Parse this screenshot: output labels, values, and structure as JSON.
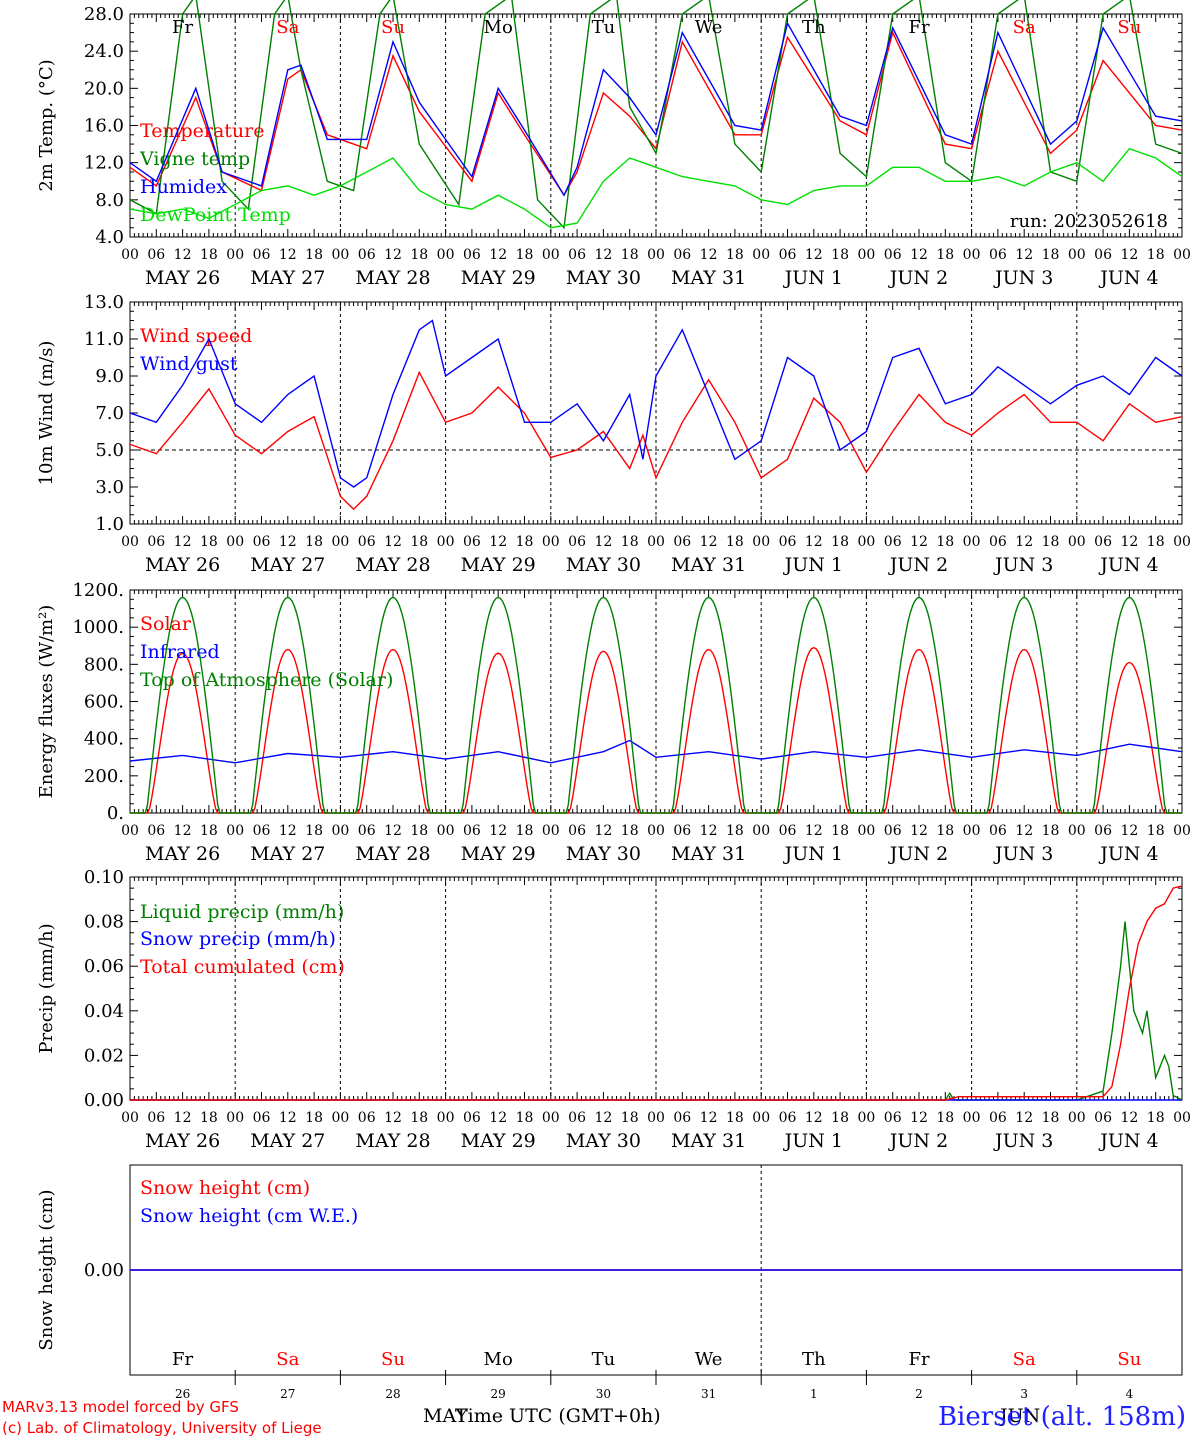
{
  "chart_data": [
    {
      "type": "line",
      "ylabel": "2m Temp. (°C)",
      "ylim": [
        4,
        28
      ],
      "ytick_labels": [
        "4.0",
        "8.0",
        "12.0",
        "16.0",
        "20.0",
        "24.0",
        "28.0"
      ],
      "xlim": [
        0,
        240
      ],
      "x_unit": "hours since 2023-05-26 00 UTC",
      "annotation": "run: 2023052618",
      "grid": "daily dashed verticals",
      "legend_position": "left",
      "series": [
        {
          "name": "Temperature",
          "color": "#ff0000",
          "x": [
            0,
            6,
            15,
            21,
            30,
            36,
            39,
            45,
            54,
            60,
            66,
            78,
            84,
            90,
            99,
            102,
            108,
            114,
            120,
            126,
            138,
            144,
            150,
            162,
            168,
            174,
            186,
            192,
            198,
            210,
            216,
            222,
            234,
            240
          ],
          "y": [
            11.5,
            9.5,
            19.0,
            11.0,
            9.0,
            21.0,
            22.0,
            15.0,
            13.5,
            23.5,
            17.5,
            10.0,
            19.5,
            15.0,
            8.5,
            11.0,
            19.5,
            17.0,
            13.5,
            25.0,
            15.0,
            15.0,
            25.5,
            16.5,
            15.0,
            26.0,
            14.0,
            13.5,
            24.0,
            13.0,
            15.5,
            23.0,
            16.0,
            15.5
          ]
        },
        {
          "name": "Vigne temp",
          "color": "#008000",
          "x": [
            0,
            6,
            12,
            15,
            21,
            27,
            33,
            36,
            39,
            45,
            51,
            57,
            60,
            66,
            75,
            81,
            87,
            93,
            99,
            105,
            111,
            114,
            120,
            126,
            132,
            138,
            144,
            150,
            156,
            162,
            168,
            174,
            180,
            186,
            192,
            198,
            204,
            210,
            216,
            222,
            228,
            234,
            240
          ],
          "y": [
            8.0,
            6.5,
            28.0,
            30.0,
            10.0,
            7.0,
            28.0,
            30.0,
            22.0,
            10.0,
            9.0,
            28.0,
            30.0,
            14.0,
            7.5,
            28.0,
            30.0,
            8.0,
            5.0,
            28.0,
            30.0,
            18.0,
            13.0,
            28.0,
            30.0,
            14.0,
            11.0,
            28.0,
            30.0,
            13.0,
            10.5,
            28.0,
            30.0,
            12.0,
            10.0,
            28.0,
            30.0,
            11.0,
            10.0,
            28.0,
            30.0,
            14.0,
            13.0
          ]
        },
        {
          "name": "Humidex",
          "color": "#0000ff",
          "x": [
            0,
            6,
            15,
            21,
            30,
            36,
            39,
            45,
            54,
            60,
            66,
            78,
            84,
            90,
            99,
            102,
            108,
            114,
            120,
            126,
            138,
            144,
            150,
            162,
            168,
            174,
            186,
            192,
            198,
            210,
            216,
            222,
            234,
            240
          ],
          "y": [
            12.0,
            10.0,
            20.0,
            11.0,
            9.5,
            22.0,
            22.5,
            14.5,
            14.5,
            25.0,
            18.5,
            10.5,
            20.0,
            15.5,
            8.5,
            11.5,
            22.0,
            19.0,
            15.0,
            26.0,
            16.0,
            15.5,
            27.0,
            17.0,
            16.0,
            26.5,
            15.0,
            14.0,
            26.0,
            14.0,
            16.5,
            26.5,
            17.0,
            16.5
          ]
        },
        {
          "name": "DewPoint Temp",
          "color": "#00e000",
          "x": [
            0,
            6,
            12,
            18,
            24,
            30,
            36,
            42,
            48,
            54,
            60,
            66,
            72,
            78,
            84,
            90,
            96,
            102,
            108,
            114,
            120,
            126,
            132,
            138,
            144,
            150,
            156,
            162,
            168,
            174,
            180,
            186,
            192,
            198,
            204,
            210,
            216,
            222,
            228,
            234,
            240
          ],
          "y": [
            7.0,
            6.5,
            7.0,
            6.0,
            7.5,
            9.0,
            9.5,
            8.5,
            9.5,
            11.0,
            12.5,
            9.0,
            7.5,
            7.0,
            8.5,
            7.0,
            5.0,
            5.5,
            10.0,
            12.5,
            11.5,
            10.5,
            10.0,
            9.5,
            8.0,
            7.5,
            9.0,
            9.5,
            9.5,
            11.5,
            11.5,
            10.0,
            10.0,
            10.5,
            9.5,
            11.0,
            12.0,
            10.0,
            13.5,
            12.5,
            10.5
          ]
        }
      ]
    },
    {
      "type": "line",
      "ylabel": "10m Wind (m/s)",
      "ylim": [
        1,
        13
      ],
      "ytick_labels": [
        "1.0",
        "3.0",
        "5.0",
        "7.0",
        "9.0",
        "11.0",
        "13.0"
      ],
      "xlim": [
        0,
        240
      ],
      "reference_line": 5.0,
      "legend_position": "left",
      "series": [
        {
          "name": "Wind speed",
          "color": "#ff0000",
          "x": [
            0,
            6,
            12,
            18,
            24,
            30,
            36,
            42,
            48,
            51,
            54,
            60,
            66,
            72,
            78,
            84,
            90,
            96,
            102,
            108,
            114,
            117,
            120,
            126,
            132,
            138,
            144,
            150,
            156,
            162,
            168,
            174,
            180,
            186,
            192,
            198,
            204,
            210,
            216,
            222,
            228,
            234,
            240
          ],
          "y": [
            5.3,
            4.8,
            6.5,
            8.3,
            5.8,
            4.8,
            6.0,
            6.8,
            2.5,
            1.8,
            2.5,
            5.5,
            9.2,
            6.5,
            7.0,
            8.4,
            7.0,
            4.6,
            5.0,
            6.0,
            4.0,
            5.8,
            3.5,
            6.5,
            8.8,
            6.5,
            3.5,
            4.5,
            7.8,
            6.5,
            3.8,
            6.0,
            8.0,
            6.5,
            5.8,
            7.0,
            8.0,
            6.5,
            6.5,
            5.5,
            7.5,
            6.5,
            6.8
          ]
        },
        {
          "name": "Wind gust",
          "color": "#0000ff",
          "x": [
            0,
            6,
            12,
            18,
            24,
            30,
            36,
            42,
            48,
            51,
            54,
            60,
            66,
            69,
            72,
            78,
            84,
            90,
            96,
            102,
            108,
            114,
            117,
            120,
            126,
            132,
            138,
            144,
            150,
            156,
            162,
            168,
            174,
            180,
            186,
            192,
            198,
            204,
            210,
            216,
            222,
            228,
            234,
            240
          ],
          "y": [
            7.0,
            6.5,
            8.5,
            11.0,
            7.5,
            6.5,
            8.0,
            9.0,
            3.5,
            3.0,
            3.5,
            8.0,
            11.5,
            12.0,
            9.0,
            10.0,
            11.0,
            6.5,
            6.5,
            7.5,
            5.5,
            8.0,
            4.5,
            9.0,
            11.5,
            8.0,
            4.5,
            5.5,
            10.0,
            9.0,
            5.0,
            6.0,
            10.0,
            10.5,
            7.5,
            8.0,
            9.5,
            8.5,
            7.5,
            8.5,
            9.0,
            8.0,
            10.0,
            9.0
          ]
        }
      ]
    },
    {
      "type": "line",
      "ylabel": "Energy fluxes (W/m²)",
      "ylim": [
        0,
        1200
      ],
      "ytick_labels": [
        "0.",
        "200.",
        "400.",
        "600.",
        "800.",
        "1000.",
        "1200."
      ],
      "xlim": [
        0,
        240
      ],
      "legend_position": "left",
      "solar_peaks": [
        860,
        880,
        880,
        860,
        870,
        880,
        890,
        880,
        880,
        810
      ],
      "toa_peak": 1160,
      "series": [
        {
          "name": "Solar",
          "color": "#ff0000"
        },
        {
          "name": "Infrared",
          "color": "#0000ff",
          "x": [
            0,
            12,
            24,
            36,
            48,
            60,
            72,
            84,
            96,
            108,
            114,
            120,
            132,
            144,
            156,
            168,
            180,
            192,
            204,
            216,
            228,
            240
          ],
          "y": [
            280,
            310,
            270,
            320,
            300,
            330,
            290,
            330,
            270,
            330,
            390,
            300,
            330,
            290,
            330,
            300,
            340,
            300,
            340,
            310,
            370,
            330
          ]
        },
        {
          "name": "Top of Atmosphere (Solar)",
          "color": "#008000"
        }
      ]
    },
    {
      "type": "line",
      "ylabel": "Precip (mm/h)",
      "ylim": [
        0,
        0.1
      ],
      "ytick_labels": [
        "0.00",
        "0.02",
        "0.04",
        "0.06",
        "0.08",
        "0.10"
      ],
      "xlim": [
        0,
        240
      ],
      "legend_position": "left",
      "series": [
        {
          "name": "Liquid precip (mm/h)",
          "color": "#008000",
          "x": [
            0,
            186,
            187,
            188,
            216,
            222,
            224,
            226,
            227,
            229,
            231,
            232,
            234,
            236,
            237,
            238,
            240
          ],
          "y": [
            0,
            0,
            0.003,
            0,
            0,
            0.004,
            0.03,
            0.06,
            0.08,
            0.04,
            0.03,
            0.04,
            0.01,
            0.02,
            0.015,
            0.002,
            0
          ]
        },
        {
          "name": "Snow precip (mm/h)",
          "color": "#0000ff",
          "x": [
            0,
            240
          ],
          "y": [
            0,
            0
          ]
        },
        {
          "name": "Total cumulated (cm)",
          "color": "#ff0000",
          "x": [
            0,
            186,
            189,
            222,
            224,
            226,
            228,
            230,
            232,
            234,
            236,
            238,
            240
          ],
          "y": [
            0,
            0,
            0.0015,
            0.0015,
            0.006,
            0.025,
            0.05,
            0.07,
            0.08,
            0.086,
            0.088,
            0.095,
            0.096
          ]
        }
      ]
    },
    {
      "type": "line",
      "ylabel": "Snow height (cm)",
      "ytick_labels": [
        "0.00"
      ],
      "xlim": [
        0,
        240
      ],
      "legend_position": "left",
      "series": [
        {
          "name": "Snow height (cm)",
          "color": "#ff0000",
          "x": [
            0,
            240
          ],
          "y": [
            0,
            0
          ]
        },
        {
          "name": "Snow height (cm W.E.)",
          "color": "#0000ff",
          "x": [
            0,
            240
          ],
          "y": [
            0,
            0
          ]
        }
      ]
    }
  ],
  "x_hour_ticks": [
    "00",
    "06",
    "12",
    "18"
  ],
  "x_last_tick": "00",
  "day_labels": [
    "MAY 26",
    "MAY 27",
    "MAY 28",
    "MAY 29",
    "MAY 30",
    "MAY 31",
    "JUN  1",
    "JUN  2",
    "JUN  3",
    "JUN  4"
  ],
  "weekdays": [
    "Fr",
    "Sa",
    "Su",
    "Mo",
    "Tu",
    "We",
    "Th",
    "Fr",
    "Sa",
    "Su"
  ],
  "weekend_flags": [
    false,
    true,
    true,
    false,
    false,
    false,
    false,
    false,
    true,
    true
  ],
  "day_numbers": [
    "26",
    "27",
    "28",
    "29",
    "30",
    "31",
    "1",
    "2",
    "3",
    "4"
  ],
  "colors": {
    "weekday": "#000000",
    "weekend": "#ff0000"
  },
  "footer": {
    "model": "MARv3.13 model forced by GFS",
    "credit": "(c) Lab. of Climatology, University of Liege",
    "xaxis_title": "Time UTC (GMT+0h)",
    "month_left": "MAY",
    "month_right": "JUN",
    "station": "Bierset (alt. 158m)"
  }
}
